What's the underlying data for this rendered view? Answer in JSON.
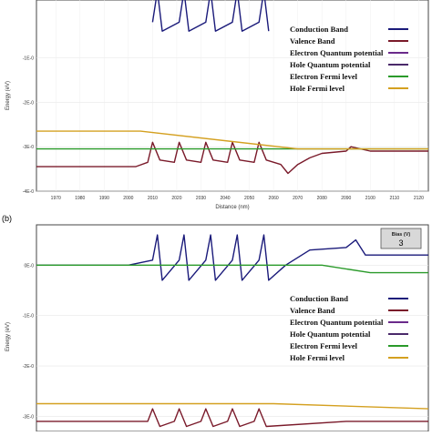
{
  "panel_b_label": "(b)",
  "bias_box": {
    "label": "Bias (V)",
    "value": "3"
  },
  "legend": [
    {
      "label": "Conduction Band",
      "color": "#1a1a7a"
    },
    {
      "label": "Valence Band",
      "color": "#7a1a2a"
    },
    {
      "label": "Electron Quantum potential",
      "color": "#6a2a8a"
    },
    {
      "label": "Hole Quantum potential",
      "color": "#4a2a6a"
    },
    {
      "label": "Electron Fermi level",
      "color": "#2a9a2a"
    },
    {
      "label": "Hole Fermi level",
      "color": "#d4a020"
    }
  ],
  "chart_data": [
    {
      "type": "line",
      "title": "",
      "xlabel": "Distance (nm)",
      "ylabel": "Energy (eV)",
      "x_ticks": [
        "1970",
        "1980",
        "1990",
        "2000",
        "2010",
        "2020",
        "2030",
        "2040",
        "2050",
        "2060",
        "2070",
        "2080",
        "2090",
        "2100",
        "2110",
        "2120"
      ],
      "y_ticks": [
        "-1E-0",
        "-2E-0",
        "-3E-0",
        "-4E-0"
      ],
      "xlim": [
        1962,
        2124
      ],
      "ylim": [
        -4.0,
        0.3
      ],
      "grid": true,
      "legend_position": "right",
      "series": [
        {
          "name": "Conduction Band",
          "x": [
            2010,
            2012,
            2014,
            2021,
            2023,
            2025,
            2032,
            2034,
            2036,
            2043,
            2045,
            2047,
            2054,
            2056,
            2058
          ],
          "y": [
            -0.2,
            0.5,
            -0.4,
            -0.2,
            0.5,
            -0.4,
            -0.2,
            0.5,
            -0.4,
            -0.2,
            0.5,
            -0.4,
            -0.2,
            0.5,
            -0.4
          ]
        },
        {
          "name": "Valence Band",
          "x": [
            1962,
            2003,
            2008,
            2010,
            2013,
            2019,
            2021,
            2024,
            2030,
            2032,
            2035,
            2041,
            2043,
            2046,
            2052,
            2054,
            2057,
            2063,
            2066,
            2070,
            2075,
            2080,
            2090,
            2092,
            2100,
            2124
          ],
          "y": [
            -3.45,
            -3.45,
            -3.35,
            -2.9,
            -3.3,
            -3.35,
            -2.9,
            -3.3,
            -3.35,
            -2.9,
            -3.3,
            -3.35,
            -2.9,
            -3.3,
            -3.35,
            -2.9,
            -3.3,
            -3.4,
            -3.6,
            -3.4,
            -3.25,
            -3.15,
            -3.1,
            -3.0,
            -3.1,
            -3.1
          ]
        },
        {
          "name": "Electron Fermi level",
          "x": [
            1962,
            2124
          ],
          "y": [
            -3.05,
            -3.05
          ]
        },
        {
          "name": "Hole Fermi level",
          "x": [
            1962,
            2005,
            2070,
            2124
          ],
          "y": [
            -2.65,
            -2.65,
            -3.05,
            -3.05
          ]
        }
      ]
    },
    {
      "type": "line",
      "title": "",
      "xlabel": "",
      "ylabel": "Energy (eV)",
      "y_ticks": [
        "0E-0",
        "-1E-0",
        "-2E-0",
        "-3E-0"
      ],
      "ylim": [
        -3.3,
        0.8
      ],
      "grid": true,
      "legend_position": "right",
      "series": [
        {
          "name": "Conduction Band",
          "x": [
            1962,
            2000,
            2010,
            2012,
            2014,
            2021,
            2023,
            2025,
            2032,
            2034,
            2036,
            2043,
            2045,
            2047,
            2054,
            2056,
            2058,
            2065,
            2075,
            2090,
            2094,
            2098,
            2124
          ],
          "y": [
            0,
            0,
            0.1,
            0.6,
            -0.3,
            0.1,
            0.6,
            -0.3,
            0.1,
            0.6,
            -0.3,
            0.1,
            0.6,
            -0.3,
            0.1,
            0.6,
            -0.3,
            0.0,
            0.3,
            0.35,
            0.5,
            0.2,
            0.2
          ]
        },
        {
          "name": "Electron Fermi level",
          "x": [
            1962,
            2080,
            2100,
            2124
          ],
          "y": [
            0,
            0,
            -0.15,
            -0.15
          ]
        },
        {
          "name": "Hole Fermi level",
          "x": [
            1962,
            2060,
            2124
          ],
          "y": [
            -2.75,
            -2.75,
            -2.85
          ]
        },
        {
          "name": "Valence Band",
          "x": [
            1962,
            2008,
            2010,
            2013,
            2019,
            2021,
            2024,
            2030,
            2032,
            2035,
            2041,
            2043,
            2046,
            2052,
            2054,
            2057,
            2090,
            2124
          ],
          "y": [
            -3.1,
            -3.1,
            -2.85,
            -3.2,
            -3.1,
            -2.85,
            -3.2,
            -3.1,
            -2.85,
            -3.2,
            -3.1,
            -2.85,
            -3.2,
            -3.1,
            -2.85,
            -3.2,
            -3.1,
            -3.1
          ]
        }
      ]
    }
  ]
}
